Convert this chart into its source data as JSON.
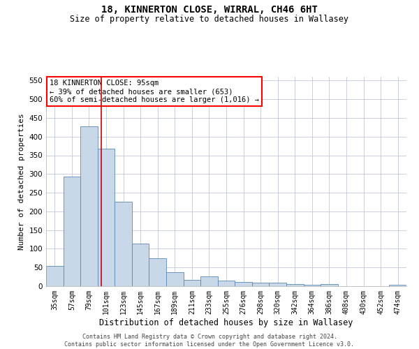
{
  "title_line1": "18, KINNERTON CLOSE, WIRRAL, CH46 6HT",
  "title_line2": "Size of property relative to detached houses in Wallasey",
  "xlabel": "Distribution of detached houses by size in Wallasey",
  "ylabel": "Number of detached properties",
  "footer_line1": "Contains HM Land Registry data © Crown copyright and database right 2024.",
  "footer_line2": "Contains public sector information licensed under the Open Government Licence v3.0.",
  "annotation_line1": "18 KINNERTON CLOSE: 95sqm",
  "annotation_line2": "← 39% of detached houses are smaller (653)",
  "annotation_line3": "60% of semi-detached houses are larger (1,016) →",
  "bar_color": "#c8d8e8",
  "bar_edge_color": "#5a8ab5",
  "marker_color": "#cc0000",
  "categories": [
    "35sqm",
    "57sqm",
    "79sqm",
    "101sqm",
    "123sqm",
    "145sqm",
    "167sqm",
    "189sqm",
    "211sqm",
    "233sqm",
    "255sqm",
    "276sqm",
    "298sqm",
    "320sqm",
    "342sqm",
    "364sqm",
    "386sqm",
    "408sqm",
    "430sqm",
    "452sqm",
    "474sqm"
  ],
  "values": [
    55,
    293,
    428,
    367,
    225,
    113,
    75,
    38,
    17,
    27,
    15,
    12,
    10,
    10,
    5,
    4,
    5,
    0,
    0,
    0,
    4
  ],
  "ylim": [
    0,
    560
  ],
  "yticks": [
    0,
    50,
    100,
    150,
    200,
    250,
    300,
    350,
    400,
    450,
    500,
    550
  ],
  "background_color": "#ffffff",
  "grid_color": "#c0c8d8",
  "title_fontsize": 10,
  "subtitle_fontsize": 8.5,
  "ylabel_fontsize": 8,
  "xlabel_fontsize": 8.5,
  "tick_fontsize": 7,
  "footer_fontsize": 6,
  "annot_fontsize": 7.5
}
